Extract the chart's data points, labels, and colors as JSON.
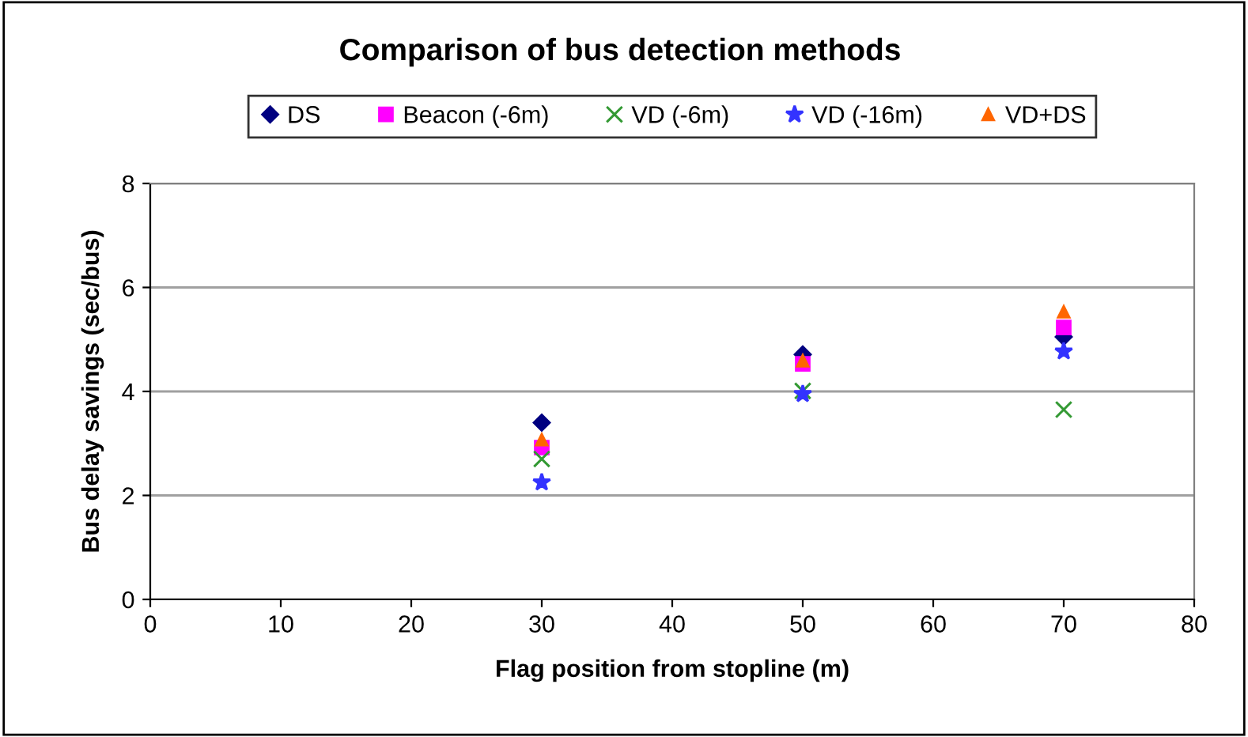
{
  "chart_data": {
    "type": "scatter",
    "title": "Comparison of bus detection methods",
    "xlabel": "Flag position from stopline (m)",
    "ylabel": "Bus delay savings (sec/bus)",
    "x": [
      30,
      50,
      70
    ],
    "series": [
      {
        "name": "DS",
        "color": "#000080",
        "marker": "diamond",
        "values": [
          3.4,
          4.71,
          5.05
        ]
      },
      {
        "name": "Beacon (-6m)",
        "color": "#ff00ff",
        "marker": "square",
        "values": [
          2.92,
          4.53,
          5.23
        ]
      },
      {
        "name": "VD (-6m)",
        "color": "#339933",
        "marker": "cross",
        "values": [
          2.7,
          4.01,
          3.65
        ]
      },
      {
        "name": "VD (-16m)",
        "color": "#3333ff",
        "marker": "star",
        "values": [
          2.25,
          3.95,
          4.77
        ]
      },
      {
        "name": "VD+DS",
        "color": "#ff6600",
        "marker": "triangle",
        "values": [
          3.07,
          4.59,
          5.53
        ]
      }
    ],
    "xlim": [
      0,
      80
    ],
    "xticks": [
      0,
      10,
      20,
      30,
      40,
      50,
      60,
      70,
      80
    ],
    "ylim": [
      0,
      8
    ],
    "yticks": [
      0,
      2,
      4,
      6,
      8
    ],
    "grid": "y",
    "legend": "top"
  }
}
